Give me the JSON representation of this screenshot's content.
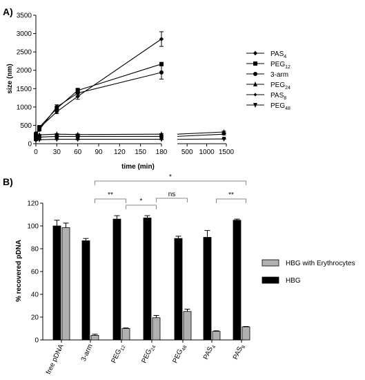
{
  "panel_a_label": "A)",
  "panel_b_label": "B)",
  "chart_data": [
    {
      "type": "line",
      "panel": "A)",
      "xlabel": "time (min)",
      "ylabel": "size  (nm)",
      "x_ticks_left": [
        "0",
        "30",
        "60",
        "90",
        "120",
        "150",
        "180"
      ],
      "x_ticks_right": [
        "500",
        "1000",
        "1500"
      ],
      "x_axis_break": true,
      "xlim_left": [
        0,
        180
      ],
      "xlim_right": [
        250,
        1500
      ],
      "ylim": [
        0,
        3500
      ],
      "y_ticks": [
        "0",
        "500",
        "1000",
        "1500",
        "2000",
        "2500",
        "3000",
        "3500"
      ],
      "legend_position": "right",
      "series": [
        {
          "name": "PAS",
          "sub": "4",
          "marker": "diamond",
          "points": [
            [
              0,
              200
            ],
            [
              5,
              430
            ],
            [
              30,
              870
            ],
            [
              60,
              1290
            ],
            [
              180,
              2850
            ]
          ],
          "err": [
            20,
            30,
            50,
            80,
            200
          ]
        },
        {
          "name": "PEG",
          "sub": "12",
          "marker": "square",
          "points": [
            [
              0,
              230
            ],
            [
              5,
              450
            ],
            [
              30,
              960
            ],
            [
              60,
              1450
            ],
            [
              180,
              2170
            ]
          ],
          "err": [
            20,
            30,
            60,
            60,
            30
          ]
        },
        {
          "name": "3-arm",
          "sub": "",
          "marker": "circle",
          "points": [
            [
              0,
              280
            ],
            [
              5,
              380
            ],
            [
              30,
              1000
            ],
            [
              60,
              1380
            ],
            [
              180,
              1940
            ]
          ],
          "err": [
            20,
            30,
            60,
            80,
            180
          ]
        },
        {
          "name": "PEG",
          "sub": "24",
          "marker": "triangle-up",
          "points": [
            [
              0,
              150
            ],
            [
              5,
              240
            ],
            [
              30,
              260
            ],
            [
              60,
              250
            ],
            [
              180,
              260
            ],
            [
              1440,
              320
            ]
          ],
          "err": [
            10,
            15,
            15,
            15,
            15,
            20
          ]
        },
        {
          "name": "PAS",
          "sub": "8",
          "marker": "diamond-small",
          "points": [
            [
              0,
              120
            ],
            [
              5,
              180
            ],
            [
              30,
              200
            ],
            [
              60,
              200
            ],
            [
              180,
              200
            ],
            [
              1440,
              260
            ]
          ],
          "err": [
            10,
            15,
            15,
            15,
            15,
            20
          ]
        },
        {
          "name": "PEG",
          "sub": "48",
          "marker": "triangle-down",
          "points": [
            [
              0,
              90
            ],
            [
              5,
              110
            ],
            [
              30,
              120
            ],
            [
              60,
              120
            ],
            [
              180,
              120
            ],
            [
              1440,
              130
            ]
          ],
          "err": [
            10,
            10,
            10,
            10,
            10,
            10
          ]
        }
      ]
    },
    {
      "type": "bar",
      "panel": "B)",
      "ylabel": "% recovered pDNA",
      "ylim": [
        0,
        120
      ],
      "y_ticks": [
        "0",
        "20",
        "40",
        "60",
        "80",
        "100",
        "120"
      ],
      "categories": [
        {
          "name": "free pDNA",
          "sub": ""
        },
        {
          "name": "3-arm",
          "sub": ""
        },
        {
          "name": "PEG",
          "sub": "12"
        },
        {
          "name": "PEG",
          "sub": "24"
        },
        {
          "name": "PEG",
          "sub": "48"
        },
        {
          "name": "PAS",
          "sub": "4"
        },
        {
          "name": "PAS",
          "sub": "8"
        }
      ],
      "legend_position": "right",
      "series": [
        {
          "name": "HBG",
          "color": "#000000",
          "values": [
            100,
            87,
            106,
            107,
            89,
            90,
            105
          ],
          "err": [
            5,
            2,
            3,
            2,
            2,
            6,
            1
          ]
        },
        {
          "name": "HBG with Erythrocytes",
          "color": "#b0b0b0",
          "values": [
            98.5,
            4,
            10,
            19.5,
            25,
            7.5,
            11.5
          ],
          "err": [
            4,
            1,
            0.5,
            2,
            2,
            0.5,
            0.3
          ]
        }
      ],
      "legend_order": [
        "HBG with Erythrocytes",
        "HBG"
      ],
      "significance": [
        {
          "from": 1,
          "to": 6,
          "label": "*"
        },
        {
          "from": 1,
          "to": 2,
          "label": "**"
        },
        {
          "from": 2,
          "to": 3,
          "label": "*"
        },
        {
          "from": 3,
          "to": 4,
          "label": "ns"
        },
        {
          "from": 5,
          "to": 6,
          "label": "**"
        }
      ]
    }
  ]
}
